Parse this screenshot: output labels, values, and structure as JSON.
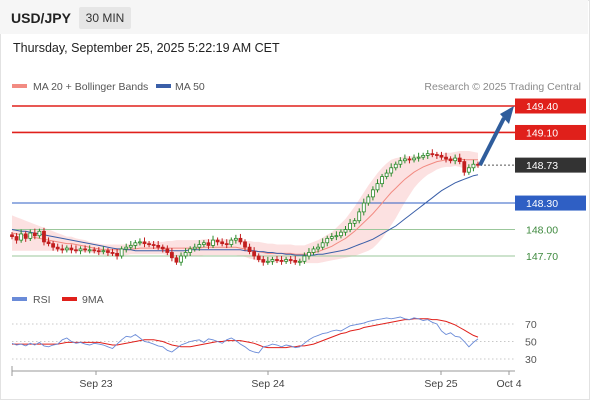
{
  "header": {
    "symbol": "USD/JPY",
    "timeframe": "30 MIN"
  },
  "timestamp": "Thursday, September 25, 2025 5:22:19 AM CET",
  "legend": {
    "ma20_label": "MA 20 + Bollinger Bands",
    "ma50_label": "MA 50",
    "rsi_label": "RSI",
    "ma9_label": "9MA",
    "credit": "Research © 2025 Trading Central"
  },
  "colors": {
    "ma20": "#f28b82",
    "ma50": "#3a5fa8",
    "band": "#fbdcdc",
    "resistance": "#e0201b",
    "support": "#2f5fc4",
    "green": "#9bc79b",
    "arrow": "#2f5d9c",
    "current": "#333333",
    "rsi": "#6a8bd8",
    "ma9": "#e0201b",
    "candle_up": "#2a8a2a",
    "candle_down": "#c21e1e"
  },
  "chart_data": [
    {
      "type": "line",
      "name": "price",
      "ylim": [
        147.45,
        149.55
      ],
      "x_ticks": [
        "Sep 23",
        "Sep 24",
        "Sep 25",
        "Oct 4"
      ],
      "levels": [
        {
          "value": 149.4,
          "label": "149.40",
          "style": "resistance"
        },
        {
          "value": 149.1,
          "label": "149.10",
          "style": "resistance"
        },
        {
          "value": 148.73,
          "label": "148.73",
          "style": "current"
        },
        {
          "value": 148.3,
          "label": "148.30",
          "style": "support"
        },
        {
          "value": 148.0,
          "label": "148.00",
          "style": "green"
        },
        {
          "value": 147.7,
          "label": "147.70",
          "style": "green"
        }
      ],
      "close": [
        147.92,
        147.88,
        147.95,
        147.9,
        147.96,
        147.93,
        147.98,
        147.86,
        147.84,
        147.8,
        147.78,
        147.77,
        147.79,
        147.77,
        147.76,
        147.78,
        147.77,
        147.77,
        147.76,
        147.75,
        147.76,
        147.74,
        147.73,
        147.7,
        147.78,
        147.8,
        147.82,
        147.85,
        147.86,
        147.84,
        147.83,
        147.82,
        147.8,
        147.78,
        147.74,
        147.68,
        147.63,
        147.7,
        147.74,
        147.78,
        147.8,
        147.83,
        147.85,
        147.82,
        147.88,
        147.86,
        147.84,
        147.83,
        147.88,
        147.9,
        147.86,
        147.8,
        147.75,
        147.7,
        147.66,
        147.63,
        147.64,
        147.66,
        147.65,
        147.64,
        147.66,
        147.65,
        147.63,
        147.64,
        147.7,
        147.74,
        147.78,
        147.8,
        147.85,
        147.9,
        147.92,
        147.93,
        147.97,
        148.0,
        148.07,
        148.1,
        148.2,
        148.3,
        148.37,
        148.45,
        148.52,
        148.6,
        148.64,
        148.7,
        148.74,
        148.78,
        148.8,
        148.79,
        148.81,
        148.82,
        148.84,
        148.86,
        148.85,
        148.84,
        148.82,
        148.8,
        148.78,
        148.81,
        148.77,
        148.65,
        148.7,
        148.74,
        148.73
      ],
      "ma20": [
        147.96,
        147.95,
        147.94,
        147.93,
        147.92,
        147.91,
        147.9,
        147.89,
        147.88,
        147.87,
        147.86,
        147.85,
        147.84,
        147.84,
        147.83,
        147.82,
        147.81,
        147.8,
        147.79,
        147.78,
        147.77,
        147.77,
        147.77,
        147.77,
        147.77,
        147.77,
        147.78,
        147.78,
        147.79,
        147.79,
        147.79,
        147.79,
        147.79,
        147.79,
        147.79,
        147.79,
        147.79,
        147.79,
        147.79,
        147.79,
        147.79,
        147.79,
        147.8,
        147.8,
        147.8,
        147.8,
        147.8,
        147.8,
        147.8,
        147.8,
        147.79,
        147.78,
        147.77,
        147.76,
        147.75,
        147.74,
        147.73,
        147.73,
        147.73,
        147.73,
        147.73,
        147.73,
        147.72,
        147.72,
        147.72,
        147.73,
        147.74,
        147.75,
        147.77,
        147.79,
        147.81,
        147.84,
        147.87,
        147.9,
        147.94,
        147.98,
        148.03,
        148.08,
        148.13,
        148.18,
        148.24,
        148.3,
        148.36,
        148.42,
        148.47,
        148.52,
        148.57,
        148.61,
        148.65,
        148.68,
        148.71,
        148.73,
        148.75,
        148.77,
        148.78,
        148.79,
        148.79,
        148.8,
        148.8,
        148.79,
        148.79,
        148.79,
        148.79
      ],
      "ma20_band_width": [
        0.2,
        0.19,
        0.18,
        0.17,
        0.16,
        0.15,
        0.14,
        0.13,
        0.12,
        0.11,
        0.1,
        0.09,
        0.08,
        0.08,
        0.07,
        0.07,
        0.07,
        0.06,
        0.06,
        0.06,
        0.06,
        0.06,
        0.06,
        0.06,
        0.06,
        0.06,
        0.06,
        0.06,
        0.07,
        0.07,
        0.07,
        0.07,
        0.07,
        0.07,
        0.08,
        0.08,
        0.09,
        0.09,
        0.09,
        0.09,
        0.09,
        0.09,
        0.09,
        0.09,
        0.09,
        0.09,
        0.09,
        0.09,
        0.09,
        0.09,
        0.09,
        0.09,
        0.1,
        0.1,
        0.11,
        0.11,
        0.11,
        0.11,
        0.1,
        0.1,
        0.1,
        0.1,
        0.1,
        0.1,
        0.1,
        0.11,
        0.12,
        0.13,
        0.14,
        0.15,
        0.16,
        0.18,
        0.2,
        0.22,
        0.25,
        0.28,
        0.31,
        0.34,
        0.37,
        0.39,
        0.4,
        0.4,
        0.39,
        0.37,
        0.34,
        0.3,
        0.26,
        0.22,
        0.18,
        0.15,
        0.13,
        0.11,
        0.1,
        0.09,
        0.08,
        0.08,
        0.08,
        0.08,
        0.09,
        0.1,
        0.1,
        0.09,
        0.08
      ],
      "ma50": [
        148.0,
        147.99,
        147.98,
        147.98,
        147.97,
        147.96,
        147.95,
        147.94,
        147.93,
        147.92,
        147.91,
        147.9,
        147.89,
        147.88,
        147.87,
        147.86,
        147.85,
        147.84,
        147.83,
        147.82,
        147.81,
        147.8,
        147.79,
        147.78,
        147.78,
        147.77,
        147.77,
        147.76,
        147.76,
        147.76,
        147.76,
        147.76,
        147.76,
        147.76,
        147.76,
        147.76,
        147.76,
        147.76,
        147.76,
        147.77,
        147.77,
        147.77,
        147.77,
        147.77,
        147.77,
        147.77,
        147.77,
        147.77,
        147.77,
        147.77,
        147.77,
        147.76,
        147.76,
        147.76,
        147.75,
        147.75,
        147.74,
        147.74,
        147.73,
        147.73,
        147.72,
        147.72,
        147.71,
        147.71,
        147.71,
        147.71,
        147.71,
        147.72,
        147.72,
        147.73,
        147.74,
        147.75,
        147.76,
        147.77,
        147.79,
        147.81,
        147.83,
        147.85,
        147.87,
        147.89,
        147.92,
        147.95,
        147.98,
        148.01,
        148.04,
        148.08,
        148.12,
        148.16,
        148.2,
        148.24,
        148.28,
        148.32,
        148.36,
        148.4,
        148.44,
        148.47,
        148.5,
        148.53,
        148.55,
        148.57,
        148.59,
        148.61,
        148.62
      ],
      "target": 149.4
    },
    {
      "type": "line",
      "name": "rsi",
      "ylim": [
        25,
        80
      ],
      "y_ticks": [
        70,
        50,
        30
      ],
      "rsi": [
        48,
        46,
        47,
        45,
        48,
        46,
        49,
        45,
        44,
        46,
        47,
        52,
        54,
        50,
        48,
        49,
        47,
        46,
        48,
        47,
        46,
        44,
        42,
        47,
        52,
        56,
        55,
        58,
        54,
        50,
        49,
        47,
        45,
        44,
        40,
        38,
        42,
        46,
        48,
        50,
        51,
        52,
        49,
        53,
        52,
        50,
        48,
        52,
        54,
        51,
        47,
        44,
        40,
        38,
        37,
        44,
        45,
        47,
        46,
        44,
        46,
        45,
        43,
        44,
        48,
        52,
        55,
        57,
        59,
        60,
        62,
        63,
        62,
        65,
        68,
        69,
        70,
        71,
        73,
        74,
        75,
        76,
        77,
        76,
        77,
        78,
        76,
        75,
        77,
        76,
        74,
        75,
        72,
        70,
        62,
        58,
        60,
        56,
        55,
        50,
        44,
        49,
        53
      ],
      "ma9": [
        47,
        47,
        47,
        47,
        47,
        47,
        47,
        47,
        47,
        47,
        47,
        48,
        49,
        49,
        49,
        49,
        49,
        49,
        49,
        49,
        48,
        47,
        46,
        46,
        47,
        48,
        49,
        50,
        51,
        52,
        52,
        52,
        51,
        50,
        48,
        46,
        45,
        44,
        44,
        44,
        45,
        46,
        47,
        48,
        49,
        50,
        50,
        51,
        51,
        51,
        51,
        50,
        49,
        48,
        46,
        44,
        43,
        43,
        43,
        43,
        43,
        44,
        44,
        45,
        45,
        46,
        47,
        49,
        51,
        53,
        55,
        57,
        59,
        60,
        62,
        63,
        64,
        66,
        67,
        68,
        69,
        70,
        71,
        72,
        73,
        74,
        75,
        75,
        76,
        76,
        76,
        76,
        75,
        75,
        74,
        73,
        71,
        69,
        66,
        63,
        60,
        57,
        55
      ]
    }
  ]
}
